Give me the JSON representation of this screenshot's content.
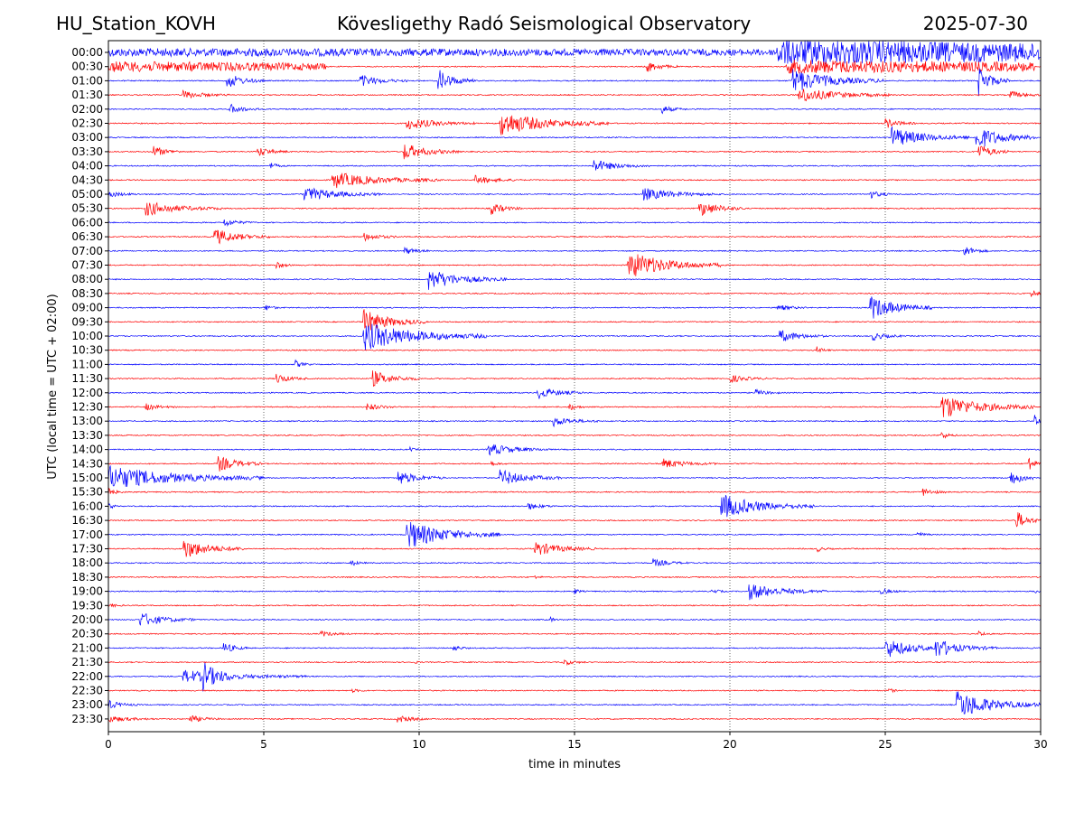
{
  "header": {
    "station": "HU_Station_KOVH",
    "observatory": "Kövesligethy Radó Seismological Observatory",
    "date": "2025-07-30"
  },
  "chart_data": {
    "type": "line",
    "xlabel": "time in minutes",
    "ylabel": "UTC (local time = UTC + 02:00)",
    "xlim": [
      0,
      30
    ],
    "x_ticks": [
      "0",
      "5",
      "10",
      "15",
      "20",
      "25",
      "30"
    ],
    "row_labels": [
      "00:00",
      "00:30",
      "01:00",
      "01:30",
      "02:00",
      "02:30",
      "03:00",
      "03:30",
      "04:00",
      "04:30",
      "05:00",
      "05:30",
      "06:00",
      "06:30",
      "07:00",
      "07:30",
      "08:00",
      "08:30",
      "09:00",
      "09:30",
      "10:00",
      "10:30",
      "11:00",
      "11:30",
      "12:00",
      "12:30",
      "13:00",
      "13:30",
      "14:00",
      "14:30",
      "15:00",
      "15:30",
      "16:00",
      "16:30",
      "17:00",
      "17:30",
      "18:00",
      "18:30",
      "19:00",
      "19:30",
      "20:00",
      "20:30",
      "21:00",
      "21:30",
      "22:00",
      "22:30",
      "23:00",
      "23:30"
    ],
    "colors": {
      "even_rows": "#0000ff",
      "odd_rows": "#ff0000"
    },
    "grid": "vertical dotted at x ticks",
    "events": [
      {
        "row": 0,
        "t": 0,
        "amp": 0.9,
        "dur": 30
      },
      {
        "row": 0,
        "t": 21.5,
        "amp": 2.5,
        "dur": 8.5
      },
      {
        "row": 1,
        "t": 0,
        "amp": 1.2,
        "dur": 7
      },
      {
        "row": 1,
        "t": 17.3,
        "amp": 1.5,
        "dur": 1
      },
      {
        "row": 1,
        "t": 21.8,
        "amp": 1.6,
        "dur": 8
      },
      {
        "row": 2,
        "t": 3.8,
        "amp": 2.0,
        "dur": 1.2
      },
      {
        "row": 2,
        "t": 8.1,
        "amp": 1.5,
        "dur": 1.5
      },
      {
        "row": 2,
        "t": 10.6,
        "amp": 2.8,
        "dur": 1.2
      },
      {
        "row": 2,
        "t": 22,
        "amp": 3.0,
        "dur": 3
      },
      {
        "row": 2,
        "t": 28,
        "amp": 3.5,
        "dur": 1
      },
      {
        "row": 3,
        "t": 2.4,
        "amp": 1.0,
        "dur": 1.5
      },
      {
        "row": 3,
        "t": 22.2,
        "amp": 1.8,
        "dur": 3
      },
      {
        "row": 3,
        "t": 29,
        "amp": 1.0,
        "dur": 1
      },
      {
        "row": 4,
        "t": 3.9,
        "amp": 1.2,
        "dur": 1
      },
      {
        "row": 4,
        "t": 17.8,
        "amp": 1.0,
        "dur": 0.8
      },
      {
        "row": 5,
        "t": 9.6,
        "amp": 1.5,
        "dur": 2.2
      },
      {
        "row": 5,
        "t": 12.6,
        "amp": 3.0,
        "dur": 3.5
      },
      {
        "row": 5,
        "t": 25,
        "amp": 1.2,
        "dur": 1
      },
      {
        "row": 6,
        "t": 25.2,
        "amp": 2.5,
        "dur": 2.5
      },
      {
        "row": 6,
        "t": 27.9,
        "amp": 3.0,
        "dur": 2
      },
      {
        "row": 7,
        "t": 1.4,
        "amp": 1.5,
        "dur": 1
      },
      {
        "row": 7,
        "t": 4.8,
        "amp": 1.2,
        "dur": 1
      },
      {
        "row": 7,
        "t": 9.5,
        "amp": 2.0,
        "dur": 1.8
      },
      {
        "row": 7,
        "t": 28,
        "amp": 2.0,
        "dur": 1
      },
      {
        "row": 8,
        "t": 15.6,
        "amp": 1.5,
        "dur": 1.8
      },
      {
        "row": 8,
        "t": 5.2,
        "amp": 0.8,
        "dur": 0.5
      },
      {
        "row": 9,
        "t": 7.2,
        "amp": 2.0,
        "dur": 3.5
      },
      {
        "row": 9,
        "t": 11.8,
        "amp": 1.0,
        "dur": 1.5
      },
      {
        "row": 10,
        "t": 0,
        "amp": 0.8,
        "dur": 1
      },
      {
        "row": 10,
        "t": 6.3,
        "amp": 1.8,
        "dur": 2.5
      },
      {
        "row": 10,
        "t": 17.2,
        "amp": 1.5,
        "dur": 2.5
      },
      {
        "row": 10,
        "t": 24.5,
        "amp": 1.0,
        "dur": 0.8
      },
      {
        "row": 11,
        "t": 1.2,
        "amp": 1.8,
        "dur": 2.5
      },
      {
        "row": 11,
        "t": 12.3,
        "amp": 1.5,
        "dur": 1
      },
      {
        "row": 11,
        "t": 19,
        "amp": 2.0,
        "dur": 1.5
      },
      {
        "row": 12,
        "t": 3.7,
        "amp": 1.0,
        "dur": 1
      },
      {
        "row": 13,
        "t": 3.4,
        "amp": 2.0,
        "dur": 1.8
      },
      {
        "row": 13,
        "t": 8.2,
        "amp": 1.0,
        "dur": 1.2
      },
      {
        "row": 14,
        "t": 9.5,
        "amp": 1.0,
        "dur": 0.8
      },
      {
        "row": 14,
        "t": 27.5,
        "amp": 1.5,
        "dur": 0.8
      },
      {
        "row": 15,
        "t": 5.4,
        "amp": 1.0,
        "dur": 0.5
      },
      {
        "row": 15,
        "t": 16.7,
        "amp": 3.5,
        "dur": 3
      },
      {
        "row": 16,
        "t": 10.3,
        "amp": 2.5,
        "dur": 2.5
      },
      {
        "row": 17,
        "t": 29.7,
        "amp": 1.5,
        "dur": 0.3
      },
      {
        "row": 18,
        "t": 5,
        "amp": 1.0,
        "dur": 0.5
      },
      {
        "row": 18,
        "t": 24.5,
        "amp": 3.0,
        "dur": 2
      },
      {
        "row": 18,
        "t": 21.5,
        "amp": 0.8,
        "dur": 1
      },
      {
        "row": 19,
        "t": 8.2,
        "amp": 3.0,
        "dur": 2
      },
      {
        "row": 20,
        "t": 8.2,
        "amp": 3.5,
        "dur": 4
      },
      {
        "row": 20,
        "t": 21.6,
        "amp": 1.5,
        "dur": 1.5
      },
      {
        "row": 20,
        "t": 24.6,
        "amp": 1.0,
        "dur": 1
      },
      {
        "row": 21,
        "t": 22.8,
        "amp": 0.8,
        "dur": 0.5
      },
      {
        "row": 22,
        "t": 6,
        "amp": 1.0,
        "dur": 0.5
      },
      {
        "row": 23,
        "t": 5.4,
        "amp": 1.2,
        "dur": 1
      },
      {
        "row": 23,
        "t": 8.5,
        "amp": 2.0,
        "dur": 1.5
      },
      {
        "row": 23,
        "t": 20,
        "amp": 1.0,
        "dur": 1.2
      },
      {
        "row": 24,
        "t": 13.8,
        "amp": 1.5,
        "dur": 1.5
      },
      {
        "row": 24,
        "t": 20.8,
        "amp": 0.8,
        "dur": 0.8
      },
      {
        "row": 25,
        "t": 1.2,
        "amp": 0.8,
        "dur": 1
      },
      {
        "row": 25,
        "t": 8.3,
        "amp": 1.0,
        "dur": 1
      },
      {
        "row": 25,
        "t": 14.8,
        "amp": 1.0,
        "dur": 0.5
      },
      {
        "row": 25,
        "t": 26.8,
        "amp": 3.0,
        "dur": 3
      },
      {
        "row": 26,
        "t": 14.3,
        "amp": 1.2,
        "dur": 1.5
      },
      {
        "row": 26,
        "t": 29.8,
        "amp": 3.0,
        "dur": 0.2
      },
      {
        "row": 27,
        "t": 26.8,
        "amp": 1.0,
        "dur": 0.5
      },
      {
        "row": 28,
        "t": 12.2,
        "amp": 1.5,
        "dur": 2
      },
      {
        "row": 28,
        "t": 9.7,
        "amp": 0.5,
        "dur": 0.3
      },
      {
        "row": 29,
        "t": 3.5,
        "amp": 2.0,
        "dur": 1.5
      },
      {
        "row": 29,
        "t": 17.8,
        "amp": 1.2,
        "dur": 1.8
      },
      {
        "row": 29,
        "t": 12.3,
        "amp": 0.6,
        "dur": 0.5
      },
      {
        "row": 29,
        "t": 29.6,
        "amp": 2.5,
        "dur": 0.4
      },
      {
        "row": 30,
        "t": 0,
        "amp": 3.0,
        "dur": 5
      },
      {
        "row": 30,
        "t": 9.3,
        "amp": 1.8,
        "dur": 1.5
      },
      {
        "row": 30,
        "t": 12.6,
        "amp": 2.0,
        "dur": 2
      },
      {
        "row": 30,
        "t": 29,
        "amp": 2.0,
        "dur": 1
      },
      {
        "row": 31,
        "t": 0,
        "amp": 1.0,
        "dur": 0.5
      },
      {
        "row": 31,
        "t": 26.2,
        "amp": 1.0,
        "dur": 0.8
      },
      {
        "row": 32,
        "t": 0,
        "amp": 1.0,
        "dur": 0.3
      },
      {
        "row": 32,
        "t": 19.7,
        "amp": 3.0,
        "dur": 3
      },
      {
        "row": 32,
        "t": 13.5,
        "amp": 0.8,
        "dur": 1
      },
      {
        "row": 33,
        "t": 29.2,
        "amp": 2.5,
        "dur": 0.8
      },
      {
        "row": 34,
        "t": 9.6,
        "amp": 3.5,
        "dur": 3
      },
      {
        "row": 34,
        "t": 26,
        "amp": 0.8,
        "dur": 0.5
      },
      {
        "row": 35,
        "t": 2.4,
        "amp": 2.5,
        "dur": 2
      },
      {
        "row": 35,
        "t": 13.7,
        "amp": 1.8,
        "dur": 2
      },
      {
        "row": 35,
        "t": 22.8,
        "amp": 0.7,
        "dur": 0.5
      },
      {
        "row": 36,
        "t": 7.8,
        "amp": 0.8,
        "dur": 0.5
      },
      {
        "row": 36,
        "t": 17.5,
        "amp": 1.0,
        "dur": 1.2
      },
      {
        "row": 37,
        "t": 13.7,
        "amp": 0.5,
        "dur": 0.3
      },
      {
        "row": 38,
        "t": 15,
        "amp": 0.8,
        "dur": 0.3
      },
      {
        "row": 38,
        "t": 19.4,
        "amp": 0.7,
        "dur": 0.5
      },
      {
        "row": 38,
        "t": 20.6,
        "amp": 2.0,
        "dur": 2.5
      },
      {
        "row": 38,
        "t": 24.8,
        "amp": 0.8,
        "dur": 0.8
      },
      {
        "row": 38,
        "t": 29.8,
        "amp": 0.8,
        "dur": 0.2
      },
      {
        "row": 39,
        "t": 0,
        "amp": 0.6,
        "dur": 0.5
      },
      {
        "row": 40,
        "t": 1.0,
        "amp": 1.8,
        "dur": 1.8
      },
      {
        "row": 40,
        "t": 14.2,
        "amp": 0.8,
        "dur": 0.3
      },
      {
        "row": 41,
        "t": 6.8,
        "amp": 0.7,
        "dur": 1
      },
      {
        "row": 41,
        "t": 28,
        "amp": 0.7,
        "dur": 0.5
      },
      {
        "row": 42,
        "t": 3.7,
        "amp": 1.5,
        "dur": 0.8
      },
      {
        "row": 42,
        "t": 11.1,
        "amp": 0.8,
        "dur": 0.5
      },
      {
        "row": 42,
        "t": 25.0,
        "amp": 2.5,
        "dur": 2
      },
      {
        "row": 42,
        "t": 26.6,
        "amp": 2.0,
        "dur": 2
      },
      {
        "row": 43,
        "t": 14.6,
        "amp": 0.8,
        "dur": 0.8
      },
      {
        "row": 43,
        "t": 9.8,
        "amp": 0.4,
        "dur": 0.3
      },
      {
        "row": 44,
        "t": 2.4,
        "amp": 1.5,
        "dur": 4
      },
      {
        "row": 44,
        "t": 3.0,
        "amp": 3.0,
        "dur": 1
      },
      {
        "row": 45,
        "t": 7.8,
        "amp": 0.5,
        "dur": 0.5
      },
      {
        "row": 45,
        "t": 25.1,
        "amp": 0.8,
        "dur": 0.3
      },
      {
        "row": 46,
        "t": 0,
        "amp": 1.0,
        "dur": 1
      },
      {
        "row": 46,
        "t": 27.3,
        "amp": 3.5,
        "dur": 2.7
      },
      {
        "row": 47,
        "t": 0,
        "amp": 0.8,
        "dur": 1.5
      },
      {
        "row": 47,
        "t": 2.6,
        "amp": 1.0,
        "dur": 1
      },
      {
        "row": 47,
        "t": 9.3,
        "amp": 1.0,
        "dur": 1
      }
    ]
  }
}
